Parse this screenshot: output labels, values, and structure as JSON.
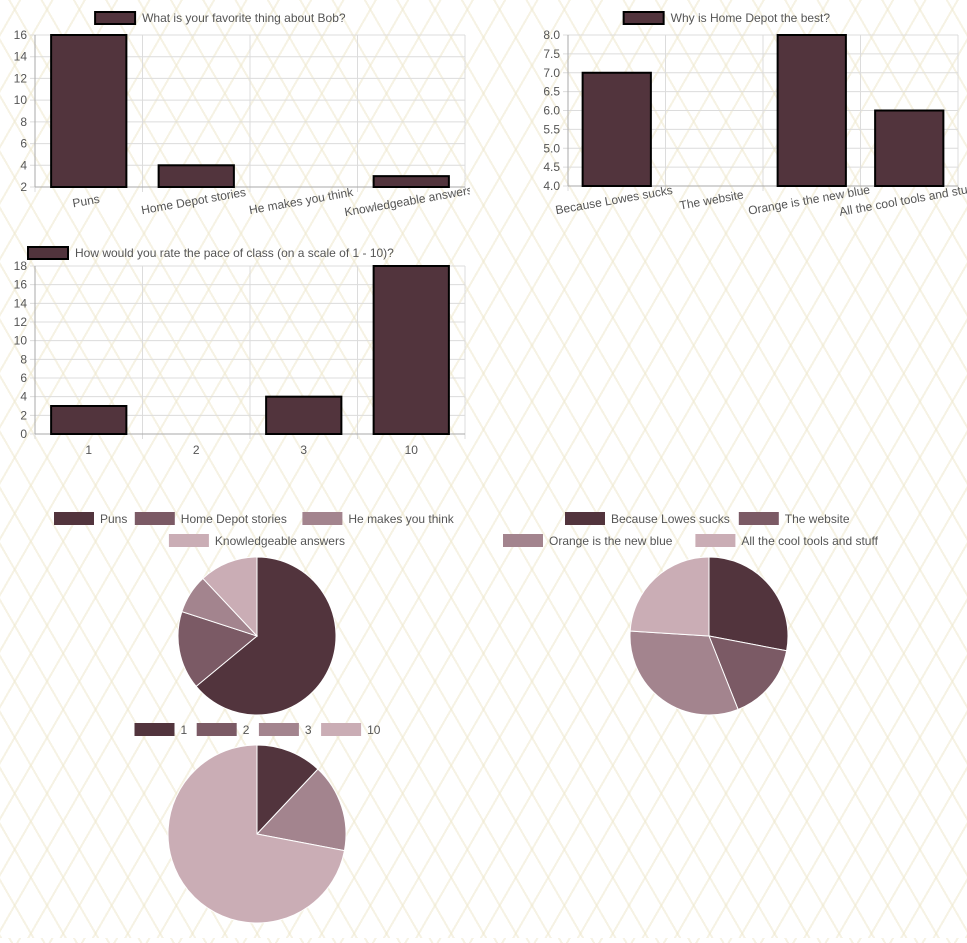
{
  "colors": {
    "bar_fill": "#52343d",
    "bar_stroke": "#000000",
    "grid": "#dcdcdc",
    "axis_text": "#555555",
    "pie_palette": [
      "#52343d",
      "#7b5a65",
      "#a3848e",
      "#caadb5"
    ]
  },
  "chart_data": [
    {
      "type": "bar",
      "title": "",
      "legend": "What is your favorite thing about Bob?",
      "categories": [
        "Puns",
        "Home Depot stories",
        "He makes you think",
        "Knowledgeable answers"
      ],
      "values": [
        16,
        4,
        2,
        3
      ],
      "ylim": [
        2,
        16
      ],
      "yticks": [
        2,
        4,
        6,
        8,
        10,
        12,
        14,
        16
      ],
      "grid": true,
      "legend_position": "top"
    },
    {
      "type": "bar",
      "title": "",
      "legend": "Why is Home Depot the best?",
      "categories": [
        "Because Lowes sucks",
        "The website",
        "Orange is the new blue",
        "All the cool tools and stuff"
      ],
      "values": [
        7,
        4,
        8,
        6
      ],
      "ylim": [
        4,
        8
      ],
      "yticks": [
        "4.0",
        "4.5",
        "5.0",
        "5.5",
        "6.0",
        "6.5",
        "7.0",
        "7.5",
        "8.0"
      ],
      "grid": true,
      "legend_position": "top"
    },
    {
      "type": "bar",
      "title": "",
      "legend": "How would you rate the pace of class (on a scale of 1 - 10)?",
      "categories": [
        "1",
        "2",
        "3",
        "10"
      ],
      "values": [
        3,
        0,
        4,
        18
      ],
      "ylim": [
        0,
        18
      ],
      "yticks": [
        0,
        2,
        4,
        6,
        8,
        10,
        12,
        14,
        16,
        18
      ],
      "grid": true,
      "legend_position": "top"
    },
    {
      "type": "pie",
      "legend": [
        "Puns",
        "Home Depot stories",
        "He makes you think",
        "Knowledgeable answers"
      ],
      "values": [
        16,
        4,
        2,
        3
      ],
      "legend_position": "top"
    },
    {
      "type": "pie",
      "legend": [
        "Because Lowes sucks",
        "The website",
        "Orange is the new blue",
        "All the cool tools and stuff"
      ],
      "values": [
        7,
        4,
        8,
        6
      ],
      "legend_position": "top"
    },
    {
      "type": "pie",
      "legend": [
        "1",
        "2",
        "3",
        "10"
      ],
      "values": [
        3,
        0,
        4,
        18
      ],
      "legend_position": "top"
    }
  ]
}
